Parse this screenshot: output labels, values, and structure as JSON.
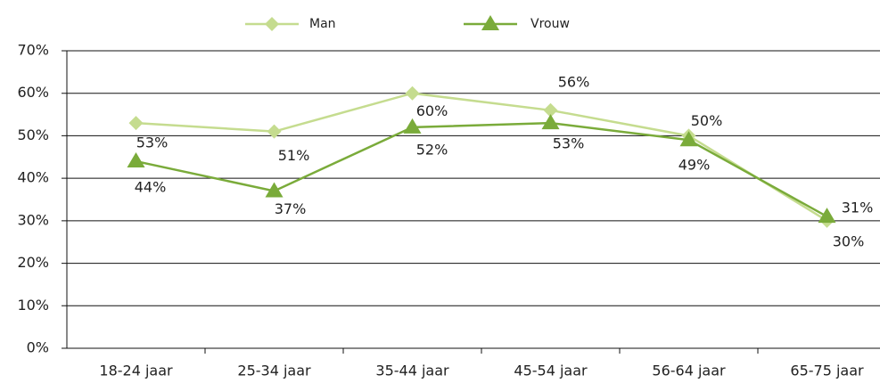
{
  "chart_data": {
    "type": "line",
    "categories": [
      "18-24 jaar",
      "25-34 jaar",
      "35-44 jaar",
      "45-54 jaar",
      "56-64 jaar",
      "65-75 jaar"
    ],
    "series": [
      {
        "name": "Man",
        "color": "#c5dc8f",
        "marker": "diamond",
        "values": [
          53,
          51,
          60,
          56,
          50,
          30
        ],
        "value_labels": [
          "53%",
          "51%",
          "60%",
          "56%",
          "50%",
          "30%"
        ]
      },
      {
        "name": "Vrouw",
        "color": "#7aab3a",
        "marker": "triangle",
        "values": [
          44,
          37,
          52,
          53,
          49,
          31
        ],
        "value_labels": [
          "44%",
          "37%",
          "52%",
          "53%",
          "49%",
          "31%"
        ]
      }
    ],
    "ylim": [
      0,
      70
    ],
    "yticks": [
      {
        "value": 0,
        "label": "0%"
      },
      {
        "value": 10,
        "label": "10%"
      },
      {
        "value": 20,
        "label": "20%"
      },
      {
        "value": 30,
        "label": "30%"
      },
      {
        "value": 40,
        "label": "40%"
      },
      {
        "value": 50,
        "label": "50%"
      },
      {
        "value": 60,
        "label": "60%"
      },
      {
        "value": 70,
        "label": "70%"
      }
    ],
    "grid": true,
    "legend": "top"
  }
}
